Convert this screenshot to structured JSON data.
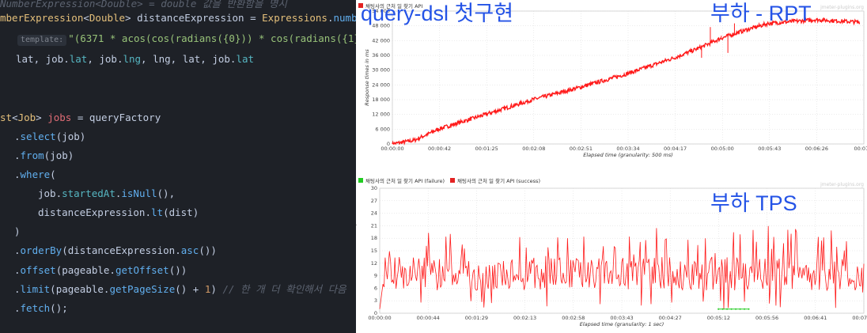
{
  "code": {
    "lines": [
      {
        "top": -4,
        "tokens": [
          {
            "c": "t-com",
            "t": "NumberExpression<Double> = double 값을 반환함을 명시"
          }
        ]
      },
      {
        "top": 14,
        "tokens": [
          {
            "c": "t-type",
            "t": "mberExpression"
          },
          {
            "c": "t-op",
            "t": "<"
          },
          {
            "c": "t-type",
            "t": "Double"
          },
          {
            "c": "t-op",
            "t": "> distanceExpression = "
          },
          {
            "c": "t-type",
            "t": "Expressions"
          },
          {
            "c": "t-op",
            "t": "."
          },
          {
            "c": "t-fn",
            "t": "numb"
          }
        ]
      },
      {
        "top": 40,
        "indent": 22,
        "chip": "template:",
        "tokens": [
          {
            "c": "t-str",
            "t": "\"(6371 * acos(cos(radians({0})) * cos(radians({1}"
          }
        ]
      },
      {
        "top": 66,
        "indent": 20,
        "tokens": [
          {
            "c": "t-op",
            "t": "lat, job."
          },
          {
            "c": "t-field",
            "t": "lat"
          },
          {
            "c": "t-op",
            "t": ", job."
          },
          {
            "c": "t-field",
            "t": "lng"
          },
          {
            "c": "t-op",
            "t": ", lng, lat, job."
          },
          {
            "c": "t-field",
            "t": "lat"
          }
        ]
      },
      {
        "top": 140,
        "tokens": [
          {
            "c": "t-type",
            "t": "st"
          },
          {
            "c": "t-op",
            "t": "<"
          },
          {
            "c": "t-type",
            "t": "Job"
          },
          {
            "c": "t-op",
            "t": "> "
          },
          {
            "c": "t-var",
            "t": "jobs"
          },
          {
            "c": "t-op",
            "t": " = queryFactory"
          }
        ]
      },
      {
        "top": 164,
        "indent": 18,
        "tokens": [
          {
            "c": "t-op",
            "t": "."
          },
          {
            "c": "t-fn",
            "t": "select"
          },
          {
            "c": "t-op",
            "t": "(job)"
          }
        ]
      },
      {
        "top": 188,
        "indent": 18,
        "tokens": [
          {
            "c": "t-op",
            "t": "."
          },
          {
            "c": "t-fn",
            "t": "from"
          },
          {
            "c": "t-op",
            "t": "(job)"
          }
        ]
      },
      {
        "top": 212,
        "indent": 18,
        "tokens": [
          {
            "c": "t-op",
            "t": "."
          },
          {
            "c": "t-fn",
            "t": "where"
          },
          {
            "c": "t-op",
            "t": "("
          }
        ]
      },
      {
        "top": 236,
        "indent": 48,
        "tokens": [
          {
            "c": "t-op",
            "t": "job."
          },
          {
            "c": "t-field",
            "t": "startedAt"
          },
          {
            "c": "t-op",
            "t": "."
          },
          {
            "c": "t-fn",
            "t": "isNull"
          },
          {
            "c": "t-op",
            "t": "(),"
          }
        ]
      },
      {
        "top": 260,
        "indent": 48,
        "tokens": [
          {
            "c": "t-op",
            "t": "distanceExpression."
          },
          {
            "c": "t-fn",
            "t": "lt"
          },
          {
            "c": "t-op",
            "t": "(dist)"
          }
        ]
      },
      {
        "top": 284,
        "indent": 18,
        "tokens": [
          {
            "c": "t-op",
            "t": ")"
          }
        ]
      },
      {
        "top": 308,
        "indent": 18,
        "tokens": [
          {
            "c": "t-op",
            "t": "."
          },
          {
            "c": "t-fn",
            "t": "orderBy"
          },
          {
            "c": "t-op",
            "t": "(distanceExpression."
          },
          {
            "c": "t-fn",
            "t": "asc"
          },
          {
            "c": "t-op",
            "t": "())"
          }
        ]
      },
      {
        "top": 333,
        "indent": 18,
        "tokens": [
          {
            "c": "t-op",
            "t": "."
          },
          {
            "c": "t-fn",
            "t": "offset"
          },
          {
            "c": "t-op",
            "t": "(pageable."
          },
          {
            "c": "t-fn",
            "t": "getOffset"
          },
          {
            "c": "t-op",
            "t": "())"
          }
        ]
      },
      {
        "top": 357,
        "indent": 18,
        "tokens": [
          {
            "c": "t-op",
            "t": "."
          },
          {
            "c": "t-fn",
            "t": "limit"
          },
          {
            "c": "t-op",
            "t": "(pageable."
          },
          {
            "c": "t-fn",
            "t": "getPageSize"
          },
          {
            "c": "t-op",
            "t": "() + "
          },
          {
            "c": "t-num",
            "t": "1"
          },
          {
            "c": "t-op",
            "t": ") "
          },
          {
            "c": "t-com",
            "t": "// 한 개 더 확인해서 다음"
          }
        ]
      },
      {
        "top": 381,
        "indent": 18,
        "tokens": [
          {
            "c": "t-op",
            "t": "."
          },
          {
            "c": "t-fn",
            "t": "fetch"
          },
          {
            "c": "t-op",
            "t": "();"
          }
        ]
      }
    ]
  },
  "overlays": {
    "title_main": "query-dsl 첫구현",
    "title_rpt": "부하 - RPT",
    "title_tps": "부하 TPS"
  },
  "colors": {
    "series_red": "#ff1a1a",
    "series_green": "#22cc22",
    "title_blue": "#2453e6",
    "code_bg": "#1e2127"
  },
  "chart_data": [
    {
      "type": "line",
      "legend": [
        "채팅사의 근처 일 찾기 API"
      ],
      "legend_colors": [
        "#e32222"
      ],
      "watermark": "jmeter-plugins.org",
      "ylabel": "Response times in ms",
      "xlabel": "Elapsed time (granularity: 500 ms)",
      "ylim": [
        0,
        54000
      ],
      "y_ticks": [
        "0",
        "6 000",
        "12 000",
        "18 000",
        "24 000",
        "30 000",
        "36 000",
        "42 000",
        "48 000",
        "54 000"
      ],
      "y_tick_values": [
        0,
        6000,
        12000,
        18000,
        24000,
        30000,
        36000,
        42000,
        48000,
        54000
      ],
      "x_ticks": [
        "00:00:00",
        "00:00:42",
        "00:01:25",
        "00:02:08",
        "00:02:51",
        "00:03:34",
        "00:04:17",
        "00:05:00",
        "00:05:43",
        "00:06:26",
        "00:07:0"
      ],
      "series": [
        {
          "values_seconds": [
            0,
            20,
            42,
            85,
            128,
            171,
            214,
            257,
            280,
            300,
            320,
            343,
            386,
            426
          ],
          "values": [
            0,
            1500,
            6000,
            12000,
            18000,
            23000,
            28500,
            35000,
            39000,
            43000,
            46000,
            49000,
            50500,
            49500
          ]
        }
      ],
      "spikes": [
        {
          "x": 282,
          "y": 35000
        },
        {
          "x": 290,
          "y": 47500
        },
        {
          "x": 300,
          "y": 44000
        },
        {
          "x": 306,
          "y": 37000
        },
        {
          "x": 312,
          "y": 49000
        }
      ]
    },
    {
      "type": "line",
      "legend": [
        "채팅사의 근처 일 찾기 API (failure)",
        "채팅사의 근처 일 찾기 API (success)"
      ],
      "legend_colors": [
        "#22cc22",
        "#e32222"
      ],
      "watermark": "jmeter-plugins.org",
      "ylabel": "Number of transactions /sec",
      "xlabel": "Elapsed time (granularity: 1 sec)",
      "ylim": [
        0,
        30
      ],
      "y_ticks": [
        "0",
        "3",
        "6",
        "9",
        "12",
        "15",
        "18",
        "21",
        "24",
        "27",
        "30"
      ],
      "y_tick_values": [
        0,
        3,
        6,
        9,
        12,
        15,
        18,
        21,
        24,
        27,
        30
      ],
      "x_ticks": [
        "00:00:00",
        "00:00:44",
        "00:01:29",
        "00:02:13",
        "00:02:58",
        "00:03:43",
        "00:04:27",
        "00:05:12",
        "00:05:56",
        "00:06:41",
        "00:07:26"
      ],
      "success_mean": 9.5,
      "success_peaks": [
        21,
        20,
        19,
        20,
        18,
        21
      ],
      "failure_range_seconds": [
        312,
        340
      ],
      "failure_value": 1
    }
  ]
}
